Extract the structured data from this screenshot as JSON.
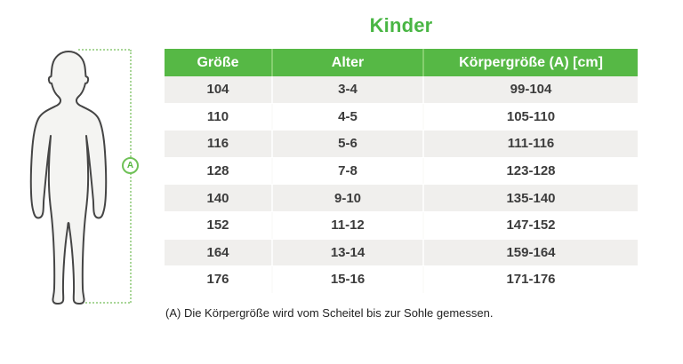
{
  "title": "Kinder",
  "chart_data": {
    "type": "table",
    "title": "Kinder",
    "columns": [
      "Größe",
      "Alter",
      "Körpergröße (A) [cm]"
    ],
    "rows": [
      [
        "104",
        "3-4",
        "99-104"
      ],
      [
        "110",
        "4-5",
        "105-110"
      ],
      [
        "116",
        "5-6",
        "111-116"
      ],
      [
        "128",
        "7-8",
        "123-128"
      ],
      [
        "140",
        "9-10",
        "135-140"
      ],
      [
        "152",
        "11-12",
        "147-152"
      ],
      [
        "164",
        "13-14",
        "159-164"
      ],
      [
        "176",
        "15-16",
        "171-176"
      ]
    ]
  },
  "figure": {
    "marker_label": "A",
    "description": "child-silhouette-with-height-measurement"
  },
  "footnote": "(A) Die Körpergröße wird vom Scheitel bis zur Sohle gemessen.",
  "colors": {
    "header_green": "#56b845",
    "header_divider_green": "#85cf6f",
    "title_green": "#49b644",
    "dotted_line_green": "#a9d698",
    "row_stripe_gray": "#f0efed",
    "cell_text": "#3c3c3c"
  }
}
